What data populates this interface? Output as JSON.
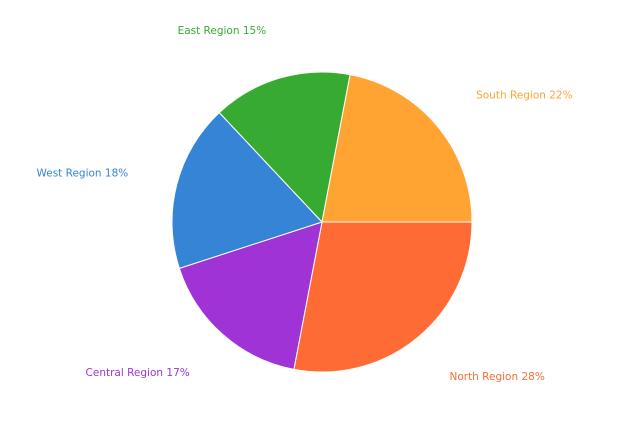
{
  "chart_data": {
    "type": "pie",
    "title": "",
    "slices": [
      {
        "name": "North Region",
        "value": 28,
        "label": "North Region 28%",
        "color": "#ff6b35"
      },
      {
        "name": "Central Region",
        "value": 17,
        "label": "Central Region 17%",
        "color": "#a033d6"
      },
      {
        "name": "West Region",
        "value": 18,
        "label": "West Region 18%",
        "color": "#3584d6"
      },
      {
        "name": "East Region",
        "value": 15,
        "label": "East Region 15%",
        "color": "#37ab31"
      },
      {
        "name": "South Region",
        "value": 22,
        "label": "South Region 22%",
        "color": "#ffa333"
      }
    ],
    "start_angle_deg": 0,
    "direction": "clockwise",
    "legend": "none"
  }
}
